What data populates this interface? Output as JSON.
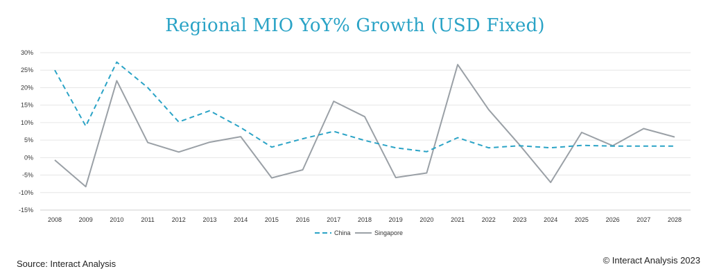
{
  "chart_data": {
    "type": "line",
    "title": "Regional MIO YoY% Growth (USD Fixed)",
    "categories": [
      "2008",
      "2009",
      "2010",
      "2011",
      "2012",
      "2013",
      "2014",
      "2015",
      "2016",
      "2017",
      "2018",
      "2019",
      "2020",
      "2021",
      "2022",
      "2023",
      "2024",
      "2025",
      "2026",
      "2027",
      "2028"
    ],
    "series": [
      {
        "name": "China",
        "color": "#2aa3c6",
        "line_style": "dashed",
        "values": [
          25.0,
          9.0,
          27.3,
          20.0,
          10.2,
          13.4,
          8.6,
          3.0,
          5.4,
          7.5,
          4.9,
          2.8,
          1.7,
          5.7,
          2.8,
          3.4,
          2.8,
          3.5,
          3.3,
          3.3,
          3.3
        ]
      },
      {
        "name": "Singapore",
        "color": "#9aa0a6",
        "line_style": "solid",
        "values": [
          -0.7,
          -8.3,
          22.0,
          4.3,
          1.6,
          4.4,
          6.0,
          -5.8,
          -3.5,
          16.1,
          11.7,
          -5.7,
          -4.4,
          26.6,
          13.7,
          3.6,
          -7.1,
          7.2,
          3.4,
          8.3,
          5.9
        ]
      }
    ],
    "y_ticks": [
      "30%",
      "25%",
      "20%",
      "15%",
      "10%",
      "5%",
      "0%",
      "-5%",
      "-10%",
      "-15%"
    ],
    "y_tick_values": [
      30,
      25,
      20,
      15,
      10,
      5,
      0,
      -5,
      -10,
      -15
    ],
    "ylim": [
      -15,
      30
    ],
    "xlabel": "",
    "ylabel": "",
    "grid": true,
    "legend_position": "bottom-center"
  },
  "footer": {
    "source": "Source: Interact Analysis",
    "copyright": "© Interact Analysis 2023"
  }
}
